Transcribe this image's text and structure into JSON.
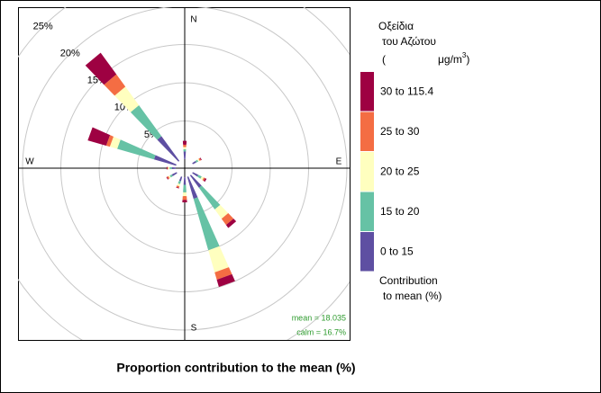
{
  "chart_data": {
    "type": "rose",
    "title": "Proportion contribution to the mean (%)",
    "compass_labels": [
      "N",
      "E",
      "S",
      "W"
    ],
    "x": [
      0,
      60,
      120,
      140,
      160,
      180,
      200,
      240,
      270,
      290,
      320
    ],
    "series": [
      {
        "name": "0 to 15",
        "color": "#5e4fa2",
        "values": [
          1,
          0.5,
          0.8,
          2,
          3,
          1,
          0.6,
          0.7,
          0.5,
          3,
          4
        ]
      },
      {
        "name": "15 to 20",
        "color": "#66c2a5",
        "values": [
          0.3,
          0.3,
          0.5,
          3.5,
          7,
          1,
          0.4,
          0.3,
          0.3,
          5,
          5
        ]
      },
      {
        "name": "20 to 25",
        "color": "#ffffbf",
        "values": [
          0.3,
          0.2,
          0.3,
          1.5,
          3,
          0.5,
          0.3,
          0.2,
          0.2,
          1,
          3
        ]
      },
      {
        "name": "25 to 30",
        "color": "#f46d43",
        "values": [
          0.3,
          0.2,
          0.2,
          1,
          1,
          0.5,
          0.2,
          0.2,
          0.1,
          0.5,
          2
        ]
      },
      {
        "name": "30 to 115.4",
        "color": "#9e0142",
        "values": [
          0.5,
          0.1,
          0.2,
          0.5,
          1,
          0.3,
          0.1,
          0.1,
          0.1,
          2.5,
          3.5
        ]
      }
    ],
    "rlim": [
      0,
      25
    ],
    "rticks": [
      {
        "value": 5,
        "label": "5%"
      },
      {
        "value": 10,
        "label": "10%"
      },
      {
        "value": 15,
        "label": "15%"
      },
      {
        "value": 20,
        "label": "20%"
      },
      {
        "value": 25,
        "label": "25%"
      }
    ],
    "legend_title": [
      "Οξείδια",
      "του Αζώτου"
    ],
    "legend_unit": [
      "(",
      "μg/m",
      "3",
      ")"
    ],
    "legend_footer": [
      "Contribution",
      "to mean (%)"
    ],
    "annotations": [
      "mean = 18.035",
      "calm = 16.7%"
    ]
  }
}
